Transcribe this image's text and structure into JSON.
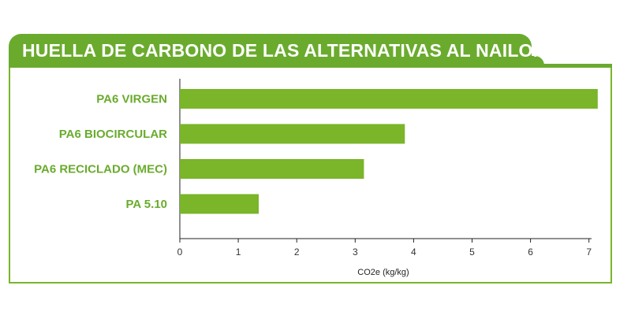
{
  "chart_data": {
    "type": "bar",
    "orientation": "horizontal",
    "title": "HUELLA DE CARBONO DE LAS ALTERNATIVAS AL NAILON",
    "categories": [
      "PA6 VIRGEN",
      "PA6 BIOCIRCULAR",
      "PA6 RECICLADO (MEC)",
      "PA 5.10"
    ],
    "values": [
      7.15,
      3.85,
      3.15,
      1.35
    ],
    "xlabel": "CO2e (kg/kg)",
    "ylabel": "",
    "xlim": [
      0,
      7
    ],
    "xticks": [
      0,
      1,
      2,
      3,
      4,
      5,
      6,
      7
    ],
    "grid": false,
    "bar_color": "#7ab52a",
    "label_color": "#6aab2e"
  }
}
